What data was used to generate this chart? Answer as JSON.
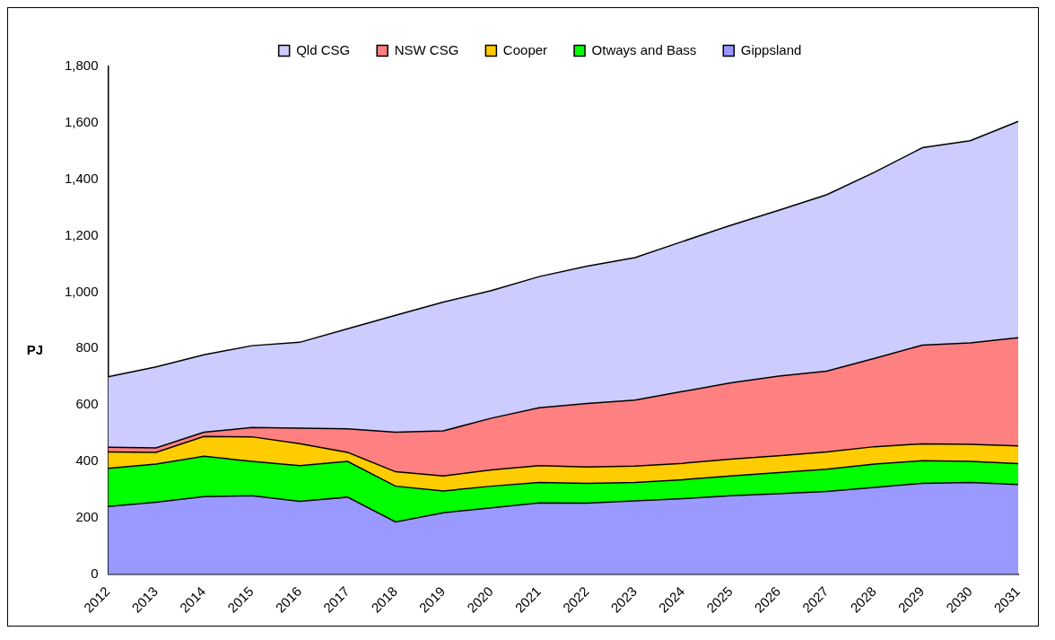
{
  "chart_data": {
    "type": "area",
    "stacked": true,
    "ylabel": "PJ",
    "legend": "top",
    "grid": false,
    "categories": [
      "2012",
      "2013",
      "2014",
      "2015",
      "2016",
      "2017",
      "2018",
      "2019",
      "2020",
      "2021",
      "2022",
      "2023",
      "2024",
      "2025",
      "2026",
      "2027",
      "2028",
      "2029",
      "2030",
      "2031"
    ],
    "ylim": [
      0,
      1800
    ],
    "yticks": [
      0,
      200,
      400,
      600,
      800,
      {
        "value": 1000,
        "label": "1,000"
      },
      {
        "value": 1200,
        "label": "1,200"
      },
      {
        "value": 1400,
        "label": "1,400"
      },
      {
        "value": 1600,
        "label": "1,600"
      },
      {
        "value": 1800,
        "label": "1,800"
      }
    ],
    "series": [
      {
        "name": "Gippsland",
        "color": "#9999ff",
        "values": [
          240,
          255,
          275,
          278,
          258,
          273,
          185,
          218,
          235,
          253,
          252,
          260,
          268,
          278,
          285,
          293,
          308,
          322,
          325,
          318
        ]
      },
      {
        "name": "Otways and Bass",
        "color": "#00ff00",
        "values": [
          135,
          135,
          143,
          122,
          127,
          127,
          127,
          77,
          77,
          72,
          70,
          65,
          67,
          70,
          75,
          79,
          82,
          80,
          75,
          74
        ]
      },
      {
        "name": "Cooper",
        "color": "#ffcc00",
        "values": [
          58,
          42,
          70,
          87,
          78,
          32,
          51,
          53,
          58,
          60,
          58,
          58,
          58,
          60,
          60,
          61,
          62,
          60,
          60,
          63
        ]
      },
      {
        "name": "NSW CSG",
        "color": "#ff8080",
        "values": [
          17,
          16,
          15,
          33,
          55,
          83,
          140,
          160,
          183,
          205,
          225,
          234,
          255,
          270,
          282,
          287,
          313,
          350,
          360,
          383
        ]
      },
      {
        "name": "Qld CSG",
        "color": "#ccccff",
        "values": [
          250,
          287,
          275,
          290,
          304,
          355,
          415,
          457,
          452,
          465,
          487,
          505,
          532,
          559,
          588,
          625,
          660,
          700,
          717,
          767
        ]
      }
    ]
  }
}
